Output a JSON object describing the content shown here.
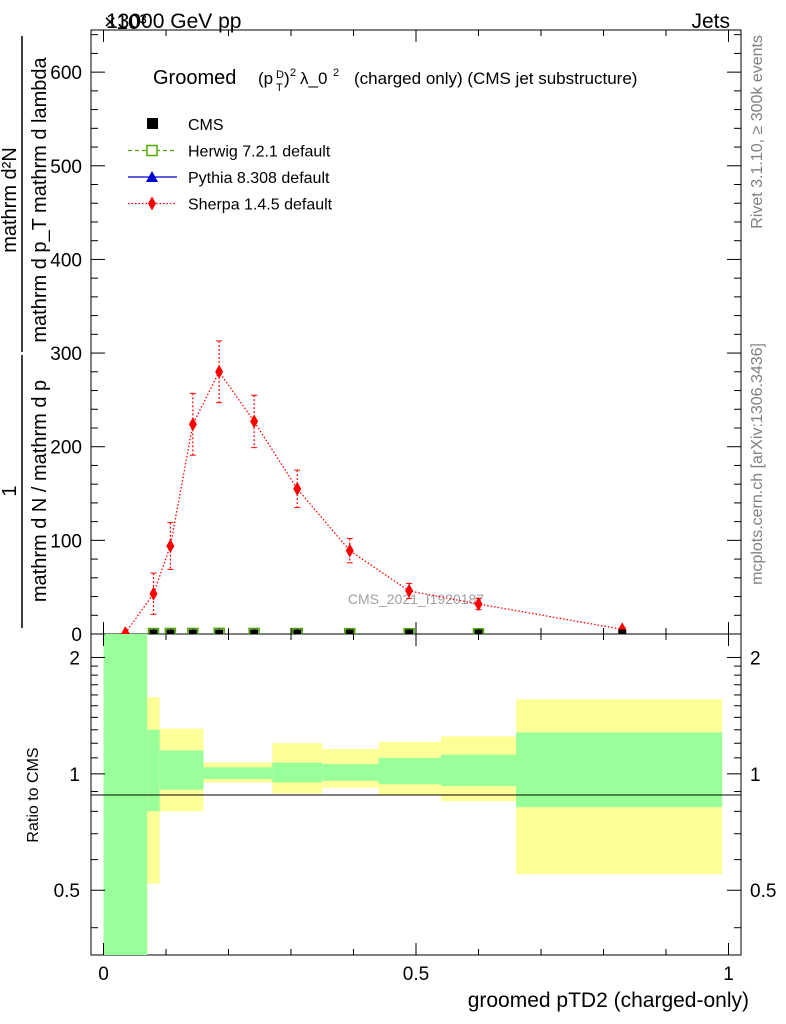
{
  "header": {
    "energy": "13000 GeV pp",
    "process": "Jets",
    "exponent": "×10³"
  },
  "side": {
    "rivet": "Rivet 3.1.10, ≥ 300k events",
    "mcplots": "mcplots.cern.ch [arXiv:1306.3436]"
  },
  "watermark": "CMS_2021_I1920187",
  "chart_data": {
    "type": "line",
    "title": {
      "prefix": "Groomed",
      "formula": "(pTD)² λ_0²",
      "suffix": "(charged only) (CMS jet substructure)"
    },
    "xlabel": "groomed pTD2 (charged-only)",
    "ylabel": {
      "num_left": "1",
      "num_right": "mathrm d²N",
      "den_left": "mathrm d N / mathrm d p",
      "den_right": "mathrm d p_T mathrm d lambda"
    },
    "xlim": [
      -0.02,
      1.02
    ],
    "ylim": [
      0,
      645
    ],
    "y_scale_note": "values in units of 1e3",
    "xticks": [
      0,
      0.5,
      1
    ],
    "xtick_labels": [
      "0",
      "0.5",
      "1"
    ],
    "yticks": [
      0,
      100,
      200,
      300,
      400,
      500,
      600
    ],
    "ytick_labels": [
      "0",
      "100",
      "200",
      "300",
      "400",
      "500",
      "600"
    ],
    "legend": [
      {
        "label": "CMS",
        "color": "#000000",
        "marker": "square-filled"
      },
      {
        "label": "Herwig 7.2.1 default",
        "color": "#4da600",
        "marker": "square-open"
      },
      {
        "label": "Pythia 8.308 default",
        "color": "#0000cc",
        "marker": "triangle"
      },
      {
        "label": "Sherpa 1.4.5 default",
        "color": "#ff0000",
        "marker": "diamond"
      }
    ],
    "series": [
      {
        "name": "CMS",
        "x": [
          0.08,
          0.107,
          0.143,
          0.185,
          0.241,
          0.31,
          0.394,
          0.489,
          0.6,
          0.83
        ],
        "values": [
          0.5,
          0.5,
          0.5,
          0.5,
          0.5,
          0.5,
          0.5,
          0.5,
          0.5,
          0.5
        ]
      },
      {
        "name": "Herwig 7.2.1 default",
        "x": [
          0.08,
          0.107,
          0.143,
          0.185,
          0.241,
          0.31,
          0.394,
          0.489,
          0.6
        ],
        "values": [
          0.5,
          0.6,
          0.6,
          0.7,
          0.6,
          0.5,
          0.4,
          0.3,
          0.2
        ]
      },
      {
        "name": "Pythia 8.308 default",
        "x": [
          0.08,
          0.107,
          0.143,
          0.185,
          0.241,
          0.31,
          0.394,
          0.489,
          0.6
        ],
        "values": [
          0.5,
          0.5,
          0.5,
          0.5,
          0.5,
          0.5,
          0.4,
          0.3,
          0.2
        ]
      },
      {
        "name": "Sherpa 1.4.5 default",
        "x": [
          0.035,
          0.08,
          0.107,
          0.143,
          0.185,
          0.241,
          0.31,
          0.394,
          0.489,
          0.6,
          0.83
        ],
        "values": [
          1,
          43,
          94,
          224,
          280,
          227,
          155,
          89,
          46,
          32,
          5
        ],
        "errors": [
          1,
          22,
          25,
          33,
          33,
          28,
          20,
          13,
          8,
          6,
          2
        ]
      }
    ],
    "ratio": {
      "ylabel": "Ratio to CMS",
      "ylim": [
        0.34,
        2.3
      ],
      "yticks": [
        0.5,
        1,
        2
      ],
      "ytick_labels": [
        "0.5",
        "1",
        "2"
      ],
      "bins": [
        {
          "lo": 0.0,
          "hi": 0.07,
          "green": [
            0.34,
            2.3
          ],
          "yellow": [
            0.34,
            2.3
          ]
        },
        {
          "lo": 0.07,
          "hi": 0.09,
          "green": [
            0.8,
            1.3
          ],
          "yellow": [
            0.52,
            1.58
          ]
        },
        {
          "lo": 0.09,
          "hi": 0.16,
          "green": [
            0.91,
            1.15
          ],
          "yellow": [
            0.8,
            1.31
          ]
        },
        {
          "lo": 0.16,
          "hi": 0.27,
          "green": [
            0.97,
            1.04
          ],
          "yellow": [
            0.95,
            1.07
          ]
        },
        {
          "lo": 0.27,
          "hi": 0.35,
          "green": [
            0.95,
            1.07
          ],
          "yellow": [
            0.89,
            1.2
          ]
        },
        {
          "lo": 0.35,
          "hi": 0.44,
          "green": [
            0.96,
            1.06
          ],
          "yellow": [
            0.92,
            1.16
          ]
        },
        {
          "lo": 0.44,
          "hi": 0.54,
          "green": [
            0.94,
            1.1
          ],
          "yellow": [
            0.88,
            1.21
          ]
        },
        {
          "lo": 0.54,
          "hi": 0.66,
          "green": [
            0.93,
            1.12
          ],
          "yellow": [
            0.85,
            1.25
          ]
        },
        {
          "lo": 0.66,
          "hi": 0.99,
          "green": [
            0.82,
            1.28
          ],
          "yellow": [
            0.55,
            1.56
          ]
        }
      ]
    }
  }
}
